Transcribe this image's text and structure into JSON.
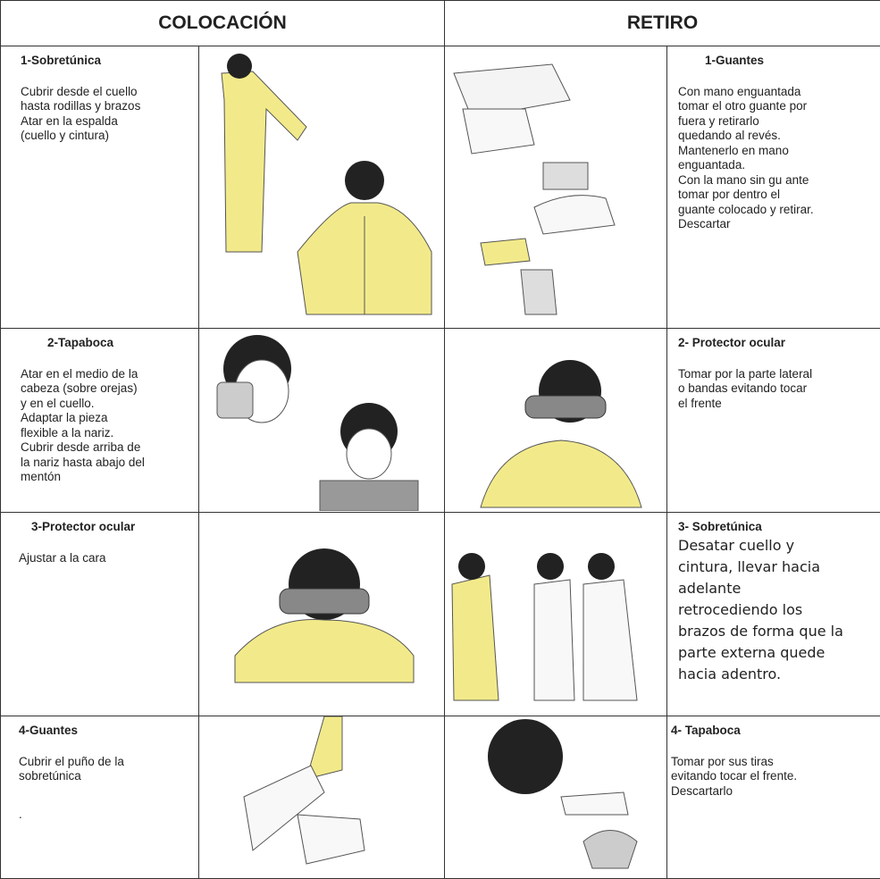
{
  "header": {
    "left": "COLOCACIÓN",
    "right": "RETIRO"
  },
  "rows": [
    {
      "left": {
        "title": "1-Sobretúnica",
        "lines": [
          "Cubrir desde el cuello",
          "hasta rodillas y brazos",
          "Atar en la espalda",
          "(cuello y cintura)"
        ]
      },
      "right": {
        "title": "1-Guantes",
        "lines": [
          "Con mano enguantada",
          "tomar el otro guante por",
          "fuera y retirarlo",
          "quedando al revés.",
          "Mantenerlo en mano",
          "enguantada.",
          "Con la mano sin gu   ante",
          "tomar por dentro el",
          "guante colocado y retirar.",
          "Descartar"
        ]
      }
    },
    {
      "left": {
        "title": "2-Tapaboca",
        "lines": [
          "Atar en el medio de la",
          "cabeza (sobre orejas)",
          "y  en el cuello.",
          "Adaptar la pieza",
          "flexible a la nariz.",
          "Cubrir desde arriba de",
          "la nariz hasta abajo del",
          "mentón"
        ]
      },
      "right": {
        "title": "2- Protector ocular",
        "lines": [
          "Tomar por la parte lateral",
          "o bandas evitando tocar",
          "el frente"
        ]
      }
    },
    {
      "left": {
        "title": "3-Protector ocular",
        "lines": [
          "Ajustar a la cara"
        ]
      },
      "right": {
        "title": "3- Sobretúnica",
        "lines": [
          "Desatar cuello y",
          "cintura, llevar hacia",
          "adelante",
          "retrocediendo los",
          "brazos de forma que la",
          "parte externa quede",
          "hacia adentro."
        ]
      }
    },
    {
      "left": {
        "title": "4-Guantes",
        "lines": [
          "Cubrir el puño de la",
          "sobretúnica"
        ],
        "note": "."
      },
      "right": {
        "title": "4- Tapaboca",
        "lines": [
          "Tomar por sus tiras",
          "evitando tocar el frente.",
          "Descartarlo"
        ]
      }
    }
  ]
}
